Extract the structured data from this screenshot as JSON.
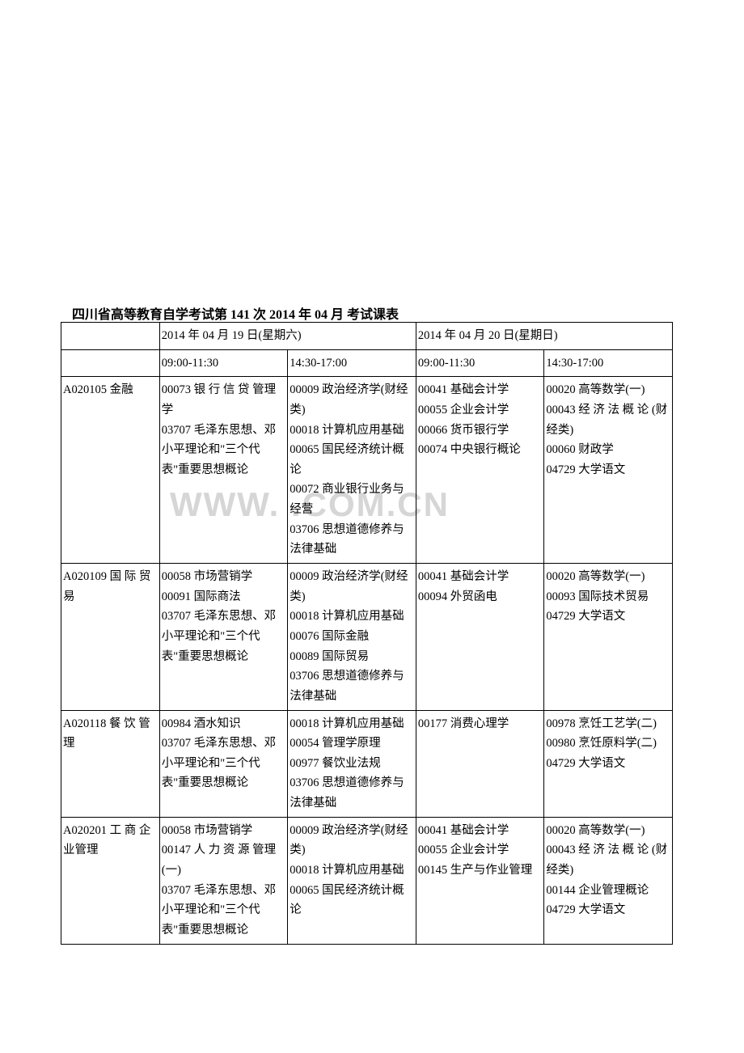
{
  "title": "四川省高等教育自学考试第 141 次 2014 年 04 月 考试课表",
  "watermark_text": "WWW.                      .COM.CN",
  "header": {
    "day1": "2014 年 04 月 19 日(星期六)",
    "day2": "2014 年 04 月 20 日(星期日)",
    "slot1": "09:00-11:30",
    "slot2": "14:30-17:00",
    "slot3": "09:00-11:30",
    "slot4": "14:30-17:00"
  },
  "rows": [
    {
      "code": "A020105 金融",
      "s1": "00073 银 行 信 贷 管理学\n03707 毛泽东思想、邓小平理论和\"三个代表\"重要思想概论",
      "s2": "00009 政治经济学(财经类)\n00018 计算机应用基础\n00065 国民经济统计概论\n00072 商业银行业务与经营\n03706 思想道德修养与法律基础",
      "s3": "00041 基础会计学\n00055 企业会计学\n00066 货币银行学\n00074 中央银行概论",
      "s4": "00020 高等数学(一)\n00043 经 济 法 概 论 (财经类)\n00060 财政学\n04729 大学语文"
    },
    {
      "code": "A020109 国 际 贸易",
      "s1": "00058 市场营销学\n00091 国际商法\n03707 毛泽东思想、邓小平理论和\"三个代表\"重要思想概论",
      "s2": "00009 政治经济学(财经类)\n00018 计算机应用基础\n00076 国际金融\n00089 国际贸易\n03706 思想道德修养与法律基础",
      "s3": "00041 基础会计学\n00094 外贸函电",
      "s4": "00020 高等数学(一)\n00093 国际技术贸易\n04729 大学语文"
    },
    {
      "code": "A020118 餐 饮 管理",
      "s1": "00984 酒水知识\n03707 毛泽东思想、邓小平理论和\"三个代表\"重要思想概论",
      "s2": "00018 计算机应用基础\n00054 管理学原理\n00977 餐饮业法规\n03706 思想道德修养与法律基础",
      "s3": "00177 消费心理学",
      "s4": "00978 烹饪工艺学(二)\n00980 烹饪原料学(二)\n04729 大学语文"
    },
    {
      "code": "A020201 工 商 企业管理",
      "s1": "00058 市场营销学\n00147 人 力 资 源 管理(一)\n03707 毛泽东思想、邓小平理论和\"三个代表\"重要思想概论",
      "s2": "00009 政治经济学(财经类)\n00018 计算机应用基础\n00065 国民经济统计概论",
      "s3": "00041 基础会计学\n00055 企业会计学\n00145 生产与作业管理",
      "s4": "00020 高等数学(一)\n00043 经 济 法 概 论 (财经类)\n00144 企业管理概论\n04729 大学语文"
    }
  ]
}
